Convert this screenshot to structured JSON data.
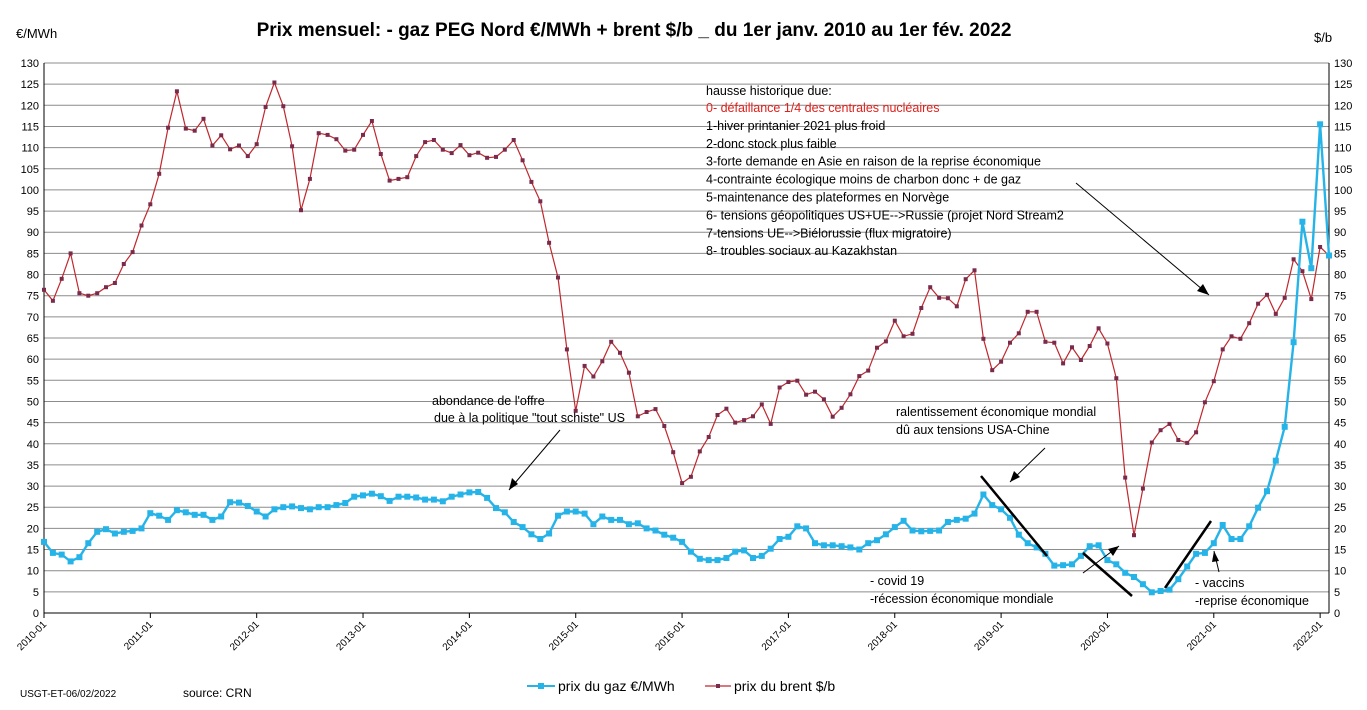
{
  "chart_data": {
    "type": "line",
    "title": "Prix mensuel:  - gaz PEG Nord €/MWh + brent $/b _  du 1er janv. 2010 au 1er fév. 2022",
    "y_left_unit": "€/MWh",
    "y_right_unit": "$/b",
    "ylim": [
      0,
      130
    ],
    "yticks": [
      0,
      5,
      10,
      15,
      20,
      25,
      30,
      35,
      40,
      45,
      50,
      55,
      60,
      65,
      70,
      75,
      80,
      85,
      90,
      95,
      100,
      105,
      110,
      115,
      120,
      125,
      130
    ],
    "xticks": [
      "2010-01",
      "2011-01",
      "2012-01",
      "2013-01",
      "2014-01",
      "2015-01",
      "2016-01",
      "2017-01",
      "2018-01",
      "2019-01",
      "2020-01",
      "2021-01",
      "2022-01"
    ],
    "grid": true,
    "legend_position": "bottom",
    "colors": {
      "gas": "#26b4e8",
      "brent": "#c0272d",
      "grid": "#8c8c8c",
      "annotation_red": "#e0201b"
    },
    "series": [
      {
        "name": "prix du gaz €/MWh",
        "key": "gas",
        "values": [
          16.8,
          14.2,
          13.8,
          12.2,
          13.2,
          16.5,
          19.2,
          19.8,
          18.8,
          19.2,
          19.4,
          20.0,
          23.6,
          23.0,
          22.0,
          24.3,
          23.8,
          23.2,
          23.2,
          22.0,
          22.8,
          26.2,
          26.1,
          25.3,
          24.0,
          22.8,
          24.5,
          25.0,
          25.2,
          24.8,
          24.5,
          25.0,
          25.0,
          25.5,
          26.0,
          27.5,
          27.8,
          28.2,
          27.6,
          26.5,
          27.5,
          27.5,
          27.3,
          26.8,
          26.8,
          26.4,
          27.5,
          28.0,
          28.5,
          28.6,
          27.2,
          24.8,
          23.8,
          21.5,
          20.3,
          18.6,
          17.5,
          18.8,
          23.0,
          24.0,
          24.0,
          23.5,
          21.0,
          22.8,
          22.0,
          22.0,
          21.0,
          21.2,
          20.0,
          19.5,
          18.5,
          17.8,
          16.8,
          14.5,
          12.8,
          12.5,
          12.5,
          13.0,
          14.5,
          14.8,
          13.0,
          13.5,
          15.2,
          17.5,
          18.0,
          20.5,
          20.0,
          16.5,
          16.0,
          16.0,
          15.8,
          15.5,
          15.0,
          16.5,
          17.2,
          18.6,
          20.3,
          21.8,
          19.5,
          19.3,
          19.4,
          19.5,
          21.5,
          22.0,
          22.3,
          23.5,
          28.0,
          25.5,
          24.5,
          22.5,
          18.5,
          16.5,
          15.5,
          14.0,
          11.2,
          11.3,
          11.5,
          13.5,
          15.8,
          16.0,
          12.5,
          11.5,
          9.5,
          8.5,
          6.8,
          4.9,
          5.2,
          5.5,
          8.0,
          11.0,
          14.0,
          14.2,
          16.5,
          20.8,
          17.5,
          17.5,
          20.5,
          24.9,
          28.8,
          36.0,
          44.0,
          64.0,
          92.5,
          81.5,
          115.5,
          84.5
        ]
      },
      {
        "name": "prix du brent $/b",
        "key": "brent",
        "values": [
          76.4,
          73.8,
          79.0,
          85.0,
          75.6,
          75.0,
          75.6,
          77.0,
          78.0,
          82.5,
          85.3,
          91.6,
          96.6,
          103.8,
          114.7,
          123.3,
          114.5,
          114.0,
          116.8,
          110.5,
          112.9,
          109.6,
          110.5,
          108.0,
          110.8,
          119.6,
          125.4,
          119.8,
          110.3,
          95.2,
          102.6,
          113.4,
          113.0,
          112.0,
          109.3,
          109.5,
          113.0,
          116.3,
          108.5,
          102.2,
          102.6,
          103.0,
          108.0,
          111.3,
          111.8,
          109.5,
          108.7,
          110.6,
          108.2,
          108.8,
          107.6,
          107.8,
          109.5,
          111.8,
          107.0,
          101.9,
          97.3,
          87.5,
          79.3,
          62.3,
          47.8,
          58.4,
          55.9,
          59.5,
          64.1,
          61.5,
          56.8,
          46.5,
          47.5,
          48.2,
          44.2,
          38.0,
          30.7,
          32.2,
          38.2,
          41.6,
          46.8,
          48.3,
          45.0,
          45.6,
          46.5,
          49.3,
          44.7,
          53.3,
          54.6,
          54.9,
          51.6,
          52.3,
          50.5,
          46.4,
          48.5,
          51.7,
          56.0,
          57.3,
          62.7,
          64.2,
          69.1,
          65.4,
          66.0,
          72.1,
          77.0,
          74.5,
          74.4,
          72.5,
          78.9,
          81.0,
          64.8,
          57.4,
          59.4,
          63.9,
          66.1,
          71.2,
          71.2,
          64.1,
          63.9,
          59.0,
          62.8,
          59.8,
          63.1,
          67.3,
          63.7,
          55.5,
          32.0,
          18.4,
          29.4,
          40.3,
          43.2,
          44.7,
          40.9,
          40.2,
          42.7,
          49.8,
          54.8,
          62.3,
          65.4,
          64.8,
          68.5,
          73.1,
          75.2,
          70.7,
          74.5,
          83.6,
          80.8,
          74.2,
          86.5,
          84.5
        ]
      }
    ]
  },
  "annotations": {
    "hausse_header": "hausse historique due:",
    "hausse_lines": [
      "0- défaillance 1/4 des centrales nucléaires",
      "1-hiver printanier 2021 plus froid",
      "2-donc  stock plus faible",
      "3-forte demande en Asie en raison de la reprise économique",
      "4-contrainte écologique moins de charbon donc + de gaz",
      "5-maintenance des plateformes en Norvège",
      "6- tensions géopolitiques US+UE-->Russie (projet Nord Stream2",
      "7-tensions UE-->Biélorussie (flux migratoire)",
      "8- troubles sociaux au Kazakhstan"
    ],
    "abondance_1": "abondance de l'offre",
    "abondance_2": "due à la politique \"tout schiste\" US",
    "ralentissement_1": "ralentissement économique mondial",
    "ralentissement_2": "dû aux tensions USA-Chine",
    "covid_1": "- covid 19",
    "covid_2": "-récession économique mondiale",
    "vaccins_1": "- vaccins",
    "vaccins_2": "-reprise économique"
  },
  "footer": {
    "credit": "USGT-ET-06/02/2022",
    "source": "source: CRN"
  }
}
